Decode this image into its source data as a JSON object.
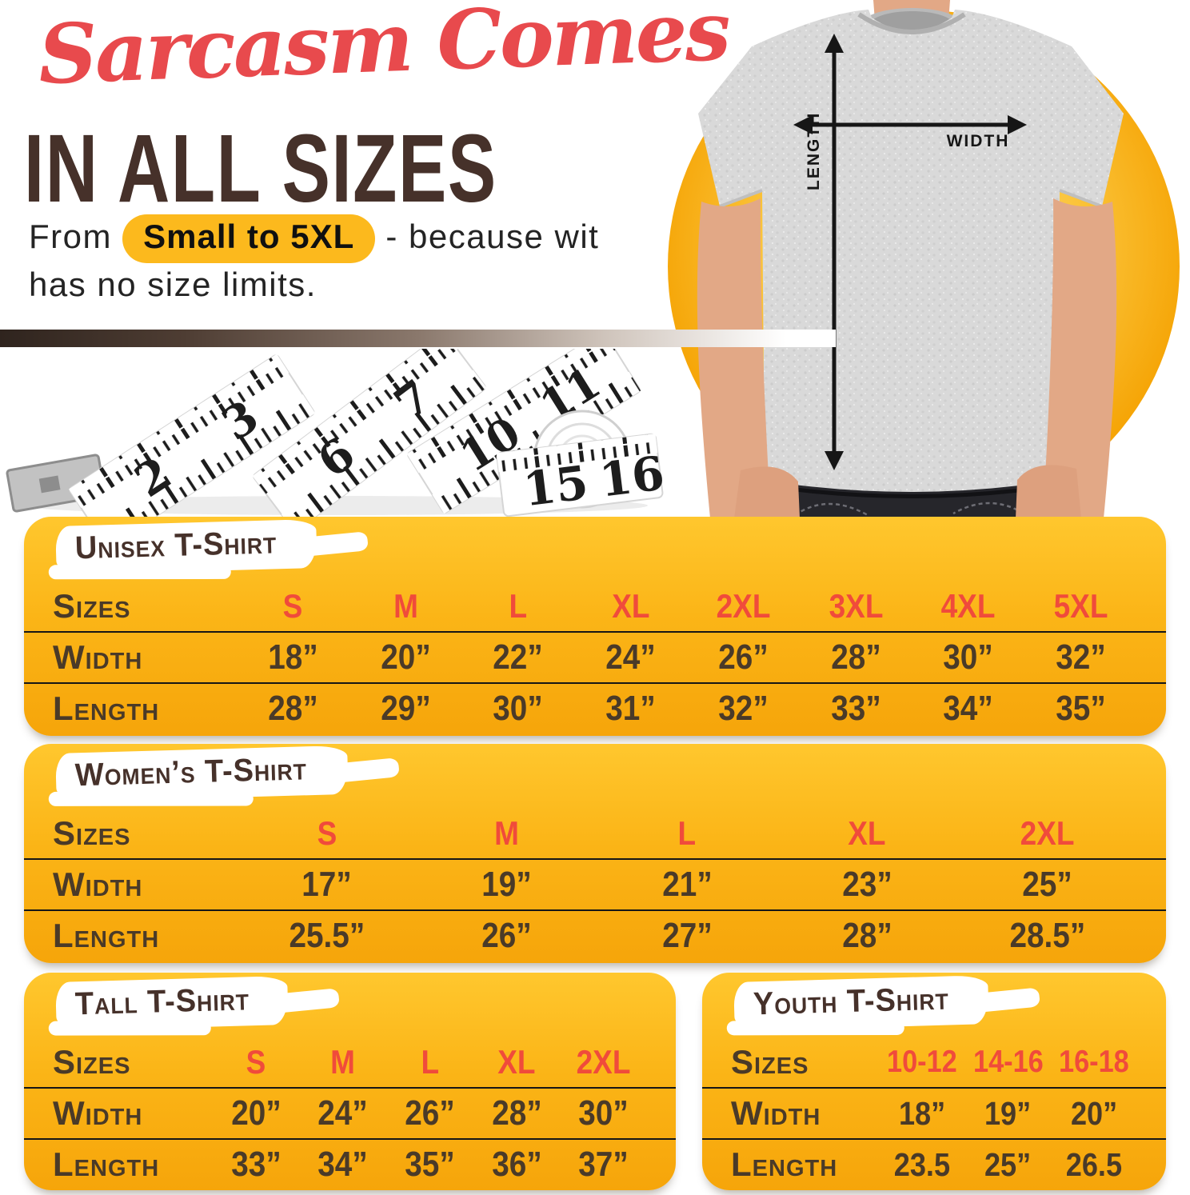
{
  "header": {
    "script_title": "Sarcasm Comes",
    "main_title": "IN ALL SIZES",
    "tagline": {
      "prefix": "From",
      "highlight": "Small to 5XL",
      "suffix": "- because wit has no size limits."
    }
  },
  "size_guide_photo": {
    "length_label": "LENGTH",
    "width_label": "WIDTH"
  },
  "tape_measure": {
    "numbers": [
      "2",
      "3",
      "6",
      "7",
      "10",
      "11",
      "15",
      "16"
    ]
  },
  "colors": {
    "script_red": "#E84A4D",
    "heading_brown": "#46312A",
    "amber_top": "#FFC72E",
    "amber_bottom": "#F6A50A",
    "size_red": "#F04B3B",
    "value_brown": "#4A3A28",
    "pill_amber": "#FCB91D"
  },
  "tables": {
    "unisex": {
      "title": "Unisex T-Shirt",
      "rows": [
        {
          "key": "sizes",
          "label": "Sizes",
          "values": [
            "S",
            "M",
            "L",
            "XL",
            "2XL",
            "3XL",
            "4XL",
            "5XL"
          ]
        },
        {
          "key": "width",
          "label": "Width",
          "values": [
            "18”",
            "20”",
            "22”",
            "24”",
            "26”",
            "28”",
            "30”",
            "32”"
          ]
        },
        {
          "key": "length",
          "label": "Length",
          "values": [
            "28”",
            "29”",
            "30”",
            "31”",
            "32”",
            "33”",
            "34”",
            "35”"
          ]
        }
      ]
    },
    "womens": {
      "title": "Women’s T-Shirt",
      "rows": [
        {
          "key": "sizes",
          "label": "Sizes",
          "values": [
            "S",
            "M",
            "L",
            "XL",
            "2XL"
          ]
        },
        {
          "key": "width",
          "label": "Width",
          "values": [
            "17”",
            "19”",
            "21”",
            "23”",
            "25”"
          ]
        },
        {
          "key": "length",
          "label": "Length",
          "values": [
            "25.5”",
            "26”",
            "27”",
            "28”",
            "28.5”"
          ]
        }
      ]
    },
    "tall": {
      "title": "Tall T-Shirt",
      "rows": [
        {
          "key": "sizes",
          "label": "Sizes",
          "values": [
            "S",
            "M",
            "L",
            "XL",
            "2XL"
          ]
        },
        {
          "key": "width",
          "label": "Width",
          "values": [
            "20”",
            "24”",
            "26”",
            "28”",
            "30”"
          ]
        },
        {
          "key": "length",
          "label": "Length",
          "values": [
            "33”",
            "34”",
            "35”",
            "36”",
            "37”"
          ]
        }
      ]
    },
    "youth": {
      "title": "Youth T-Shirt",
      "rows": [
        {
          "key": "sizes",
          "label": "Sizes",
          "values": [
            "10-12",
            "14-16",
            "16-18"
          ]
        },
        {
          "key": "width",
          "label": "Width",
          "values": [
            "18”",
            "19”",
            "20”"
          ]
        },
        {
          "key": "length",
          "label": "Length",
          "values": [
            "23.5",
            "25”",
            "26.5"
          ]
        }
      ]
    }
  }
}
